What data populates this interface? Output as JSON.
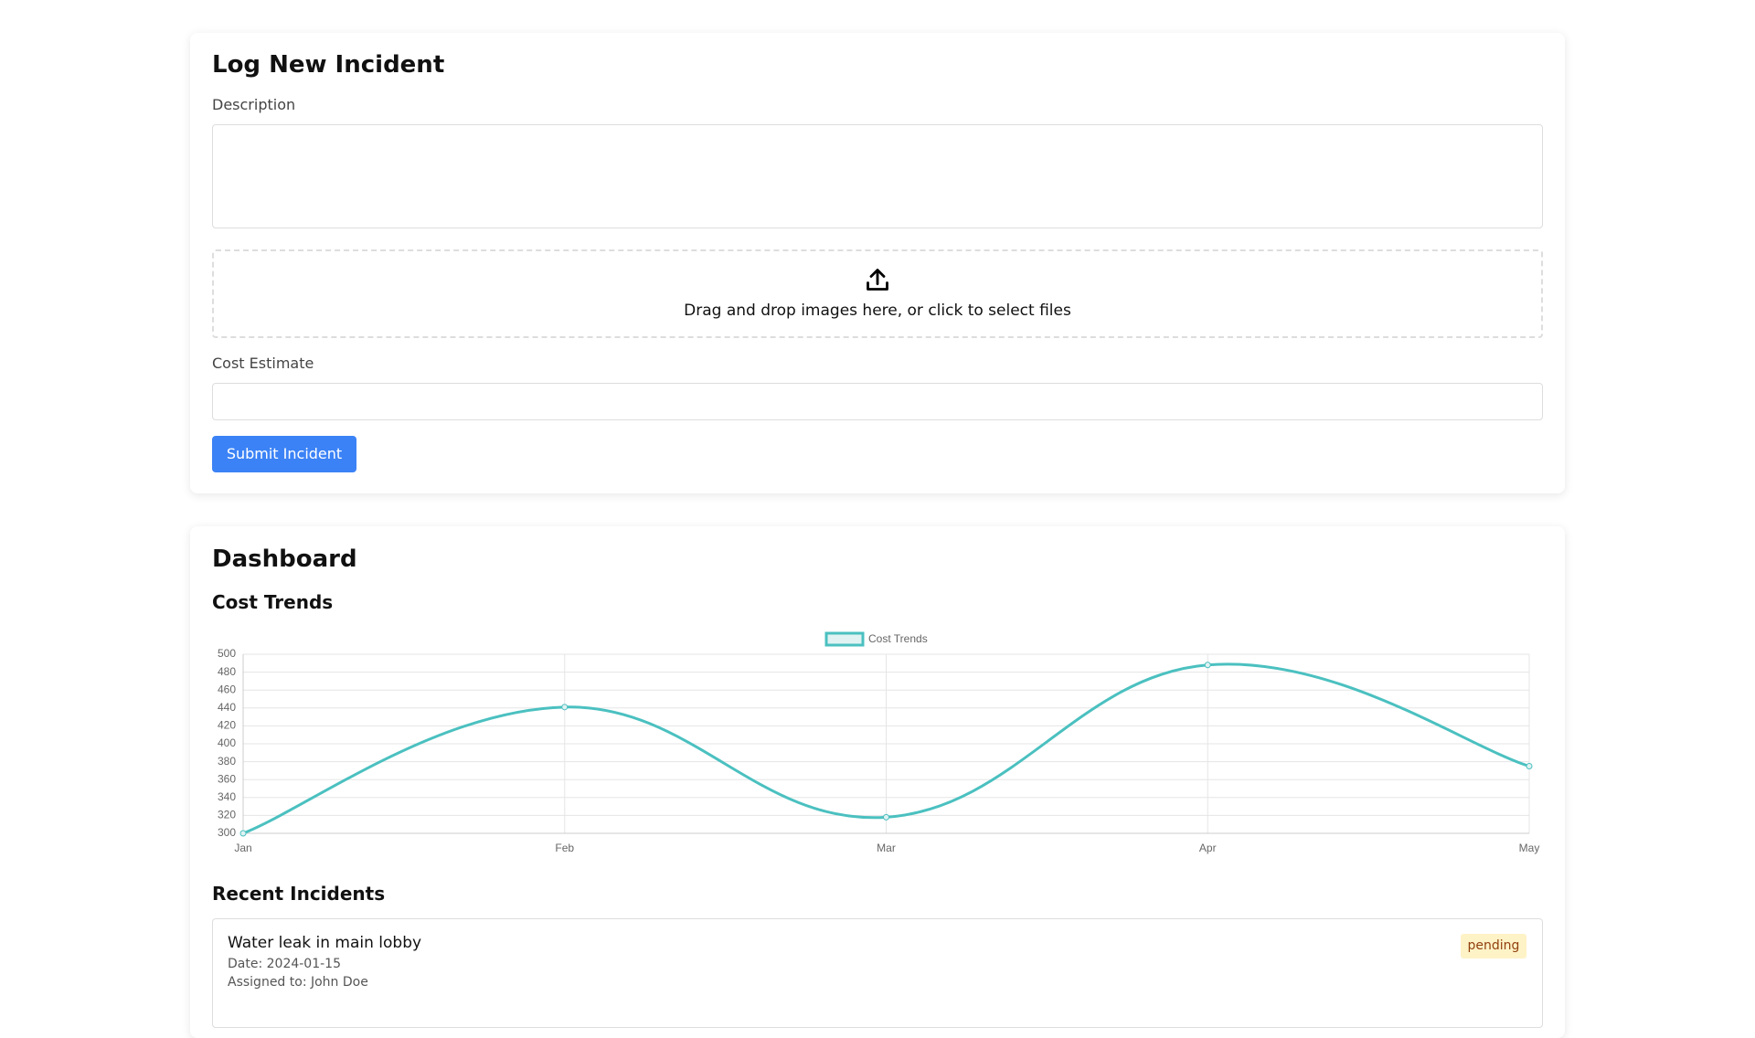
{
  "form": {
    "title": "Log New Incident",
    "description_label": "Description",
    "dropzone_text": "Drag and drop images here, or click to select files",
    "cost_label": "Cost Estimate",
    "submit": "Submit Incident"
  },
  "dashboard": {
    "title": "Dashboard",
    "chart_heading": "Cost Trends",
    "chart_data": {
      "type": "line",
      "categories": [
        "Jan",
        "Feb",
        "Mar",
        "Apr",
        "May"
      ],
      "series": [
        {
          "name": "Cost Trends",
          "color": "#4bc0c0",
          "values": [
            300,
            441,
            318,
            488,
            375
          ]
        }
      ],
      "ylim": [
        300,
        500
      ],
      "yticks": [
        300,
        320,
        340,
        360,
        380,
        400,
        420,
        440,
        460,
        480,
        500
      ],
      "grid": true,
      "legend": "top"
    },
    "recent_title": "Recent Incidents",
    "incidents": [
      {
        "title": "Water leak in main lobby",
        "date": "Date: 2024-01-15",
        "assigned": "Assigned to: John Doe",
        "status": "pending"
      }
    ]
  }
}
